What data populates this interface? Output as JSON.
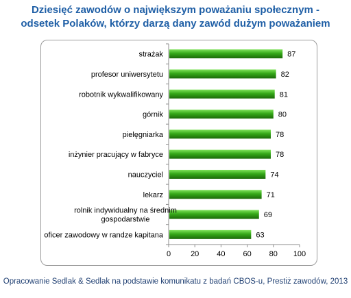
{
  "title_line1": "Dziesięć zawodów o największym poważaniu społecznym -",
  "title_line2": "odsetek Polaków, którzy darzą dany zawód dużym poważaniem",
  "source": "Opracowanie Sedlak & Sedlak na podstawie komunikatu z badań CBOS-u, Prestiż zawodów, 2013",
  "colors": {
    "bar_light": "#6fd84a",
    "bar_mid": "#2f9e14",
    "bar_dark": "#1d6e0a",
    "title": "#1f5fa6"
  },
  "chart_data": {
    "type": "bar",
    "orientation": "horizontal",
    "title": "",
    "xlabel": "",
    "ylabel": "",
    "categories": [
      [
        "strażak"
      ],
      [
        "profesor uniwersytetu"
      ],
      [
        "robotnik wykwalifikowany"
      ],
      [
        "górnik"
      ],
      [
        "pielęgniarka"
      ],
      [
        "inżynier pracujący w fabryce"
      ],
      [
        "nauczyciel"
      ],
      [
        "lekarz"
      ],
      [
        "rolnik indywidualny na średnim",
        "gospodarstwie"
      ],
      [
        "oficer zawodowy w randze kapitana"
      ]
    ],
    "values": [
      87,
      82,
      81,
      80,
      78,
      78,
      74,
      71,
      69,
      63
    ],
    "xlim": [
      0,
      100
    ],
    "xticks": [
      0,
      20,
      40,
      60,
      80,
      100
    ],
    "grid": false,
    "data_labels": true
  }
}
